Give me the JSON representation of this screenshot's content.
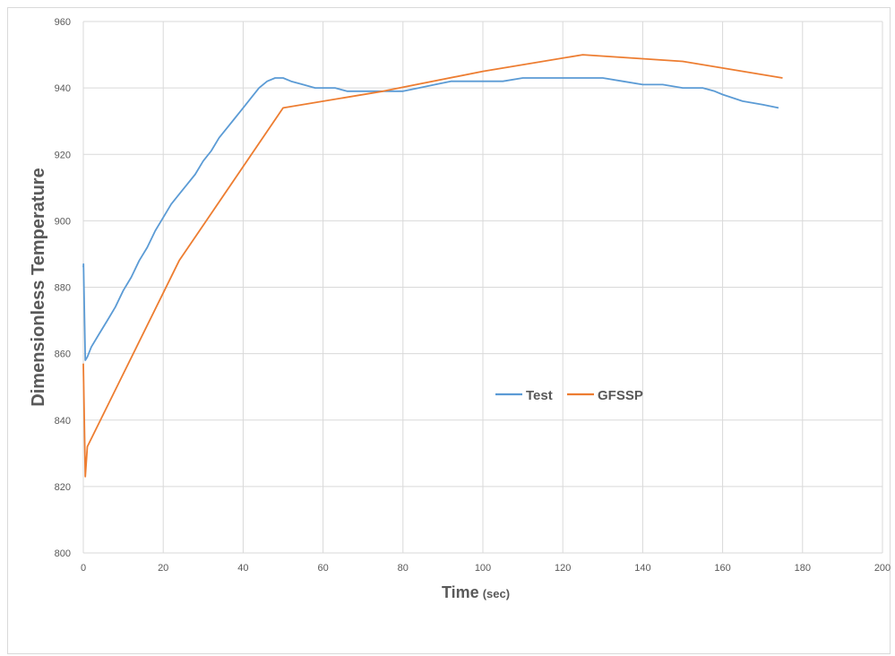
{
  "chart_data": {
    "type": "line",
    "title": "",
    "xlabel": "Time",
    "xlabel_unit": "(sec)",
    "ylabel": "Dimensionless Temperature",
    "xlim": [
      0,
      200
    ],
    "ylim": [
      800,
      960
    ],
    "xticks": [
      0,
      20,
      40,
      60,
      80,
      100,
      120,
      140,
      160,
      180,
      200
    ],
    "yticks": [
      800,
      820,
      840,
      860,
      880,
      900,
      920,
      940,
      960
    ],
    "grid": true,
    "legend_position": "center-right",
    "series": [
      {
        "name": "Test",
        "color": "#5b9bd5",
        "x": [
          0,
          0.05,
          0.5,
          1,
          2,
          4,
          6,
          8,
          10,
          12,
          14,
          16,
          18,
          20,
          22,
          24,
          26,
          28,
          30,
          32,
          34,
          36,
          38,
          40,
          42,
          44,
          46,
          48,
          49,
          50,
          52,
          55,
          58,
          60,
          63,
          66,
          70,
          73,
          76,
          80,
          84,
          88,
          92,
          96,
          100,
          105,
          110,
          115,
          120,
          125,
          130,
          135,
          140,
          145,
          150,
          155,
          158,
          160,
          165,
          170,
          174
        ],
        "y": [
          886,
          887,
          858,
          859,
          862,
          866,
          870,
          874,
          879,
          883,
          888,
          892,
          897,
          901,
          905,
          908,
          911,
          914,
          918,
          921,
          925,
          928,
          931,
          934,
          937,
          940,
          942,
          943,
          943,
          943,
          942,
          941,
          940,
          940,
          940,
          939,
          939,
          939,
          939,
          939,
          940,
          941,
          942,
          942,
          942,
          942,
          943,
          943,
          943,
          943,
          943,
          942,
          941,
          941,
          940,
          940,
          939,
          938,
          936,
          935,
          934
        ]
      },
      {
        "name": "GFSSP",
        "color": "#ed7d31",
        "x": [
          0,
          0.5,
          1,
          24,
          50,
          75,
          100,
          125,
          150,
          175
        ],
        "y": [
          857,
          823,
          832,
          888,
          934,
          939,
          945,
          950,
          948,
          943
        ]
      }
    ]
  }
}
